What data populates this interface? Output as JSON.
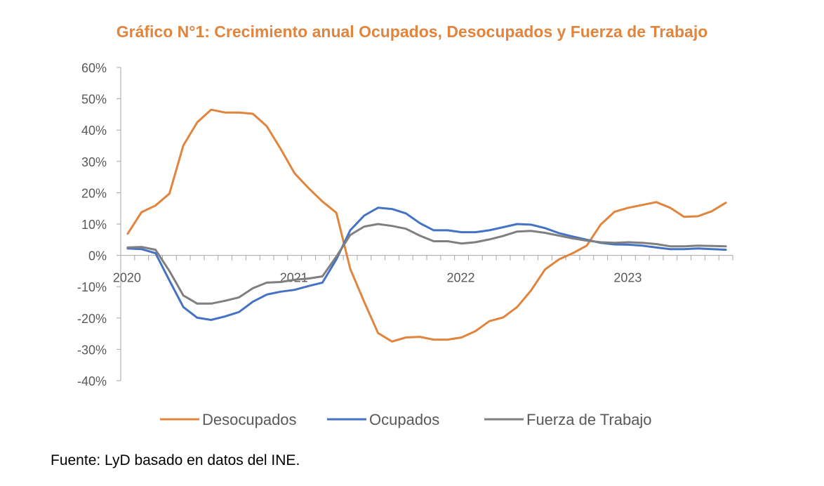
{
  "chart_data": {
    "type": "line",
    "title": "Gráfico N°1: Crecimiento anual Ocupados, Desocupados y Fuerza de Trabajo",
    "xlabel": "",
    "ylabel": "",
    "ylim": [
      -0.4,
      0.6
    ],
    "yticks": [
      0.6,
      0.5,
      0.4,
      0.3,
      0.2,
      0.1,
      0.0,
      -0.1,
      -0.2,
      -0.3,
      -0.4
    ],
    "ytick_labels": [
      "60%",
      "50%",
      "40%",
      "30%",
      "20%",
      "10%",
      "0%",
      "-10%",
      "-20%",
      "-30%",
      "-40%"
    ],
    "x_year_labels": [
      {
        "label": "2020",
        "index": 0
      },
      {
        "label": "2021",
        "index": 12
      },
      {
        "label": "2022",
        "index": 24
      },
      {
        "label": "2023",
        "index": 36
      }
    ],
    "x_count": 44,
    "x_start": "2020-01",
    "x_frequency": "monthly",
    "grid": false,
    "legend_position": "bottom",
    "series": [
      {
        "name": "Desocupados",
        "color": "#E0843E",
        "values": [
          0.069,
          0.138,
          0.159,
          0.197,
          0.351,
          0.425,
          0.465,
          0.456,
          0.456,
          0.452,
          0.412,
          0.34,
          0.262,
          0.215,
          0.172,
          0.136,
          -0.043,
          -0.148,
          -0.248,
          -0.275,
          -0.262,
          -0.26,
          -0.269,
          -0.269,
          -0.262,
          -0.242,
          -0.21,
          -0.198,
          -0.165,
          -0.112,
          -0.045,
          -0.013,
          0.007,
          0.031,
          0.098,
          0.139,
          0.152,
          0.161,
          0.17,
          0.152,
          0.123,
          0.125,
          0.141,
          0.168
        ]
      },
      {
        "name": "Ocupados",
        "color": "#4472C4",
        "values": [
          0.022,
          0.02,
          0.007,
          -0.08,
          -0.165,
          -0.199,
          -0.206,
          -0.195,
          -0.181,
          -0.148,
          -0.125,
          -0.116,
          -0.11,
          -0.098,
          -0.087,
          -0.013,
          0.08,
          0.127,
          0.152,
          0.148,
          0.134,
          0.103,
          0.08,
          0.08,
          0.074,
          0.074,
          0.08,
          0.09,
          0.1,
          0.098,
          0.087,
          0.071,
          0.06,
          0.05,
          0.04,
          0.035,
          0.034,
          0.031,
          0.025,
          0.02,
          0.02,
          0.022,
          0.02,
          0.018
        ]
      },
      {
        "name": "Fuerza de Trabajo",
        "color": "#7F7F7F",
        "values": [
          0.025,
          0.027,
          0.018,
          -0.05,
          -0.128,
          -0.154,
          -0.154,
          -0.145,
          -0.134,
          -0.105,
          -0.087,
          -0.085,
          -0.078,
          -0.074,
          -0.067,
          -0.004,
          0.065,
          0.092,
          0.1,
          0.094,
          0.085,
          0.063,
          0.045,
          0.045,
          0.038,
          0.042,
          0.051,
          0.062,
          0.076,
          0.078,
          0.072,
          0.063,
          0.054,
          0.047,
          0.042,
          0.04,
          0.042,
          0.04,
          0.036,
          0.029,
          0.029,
          0.031,
          0.03,
          0.029
        ]
      }
    ]
  },
  "footer": {
    "source": "Fuente: LyD basado en datos del INE."
  }
}
